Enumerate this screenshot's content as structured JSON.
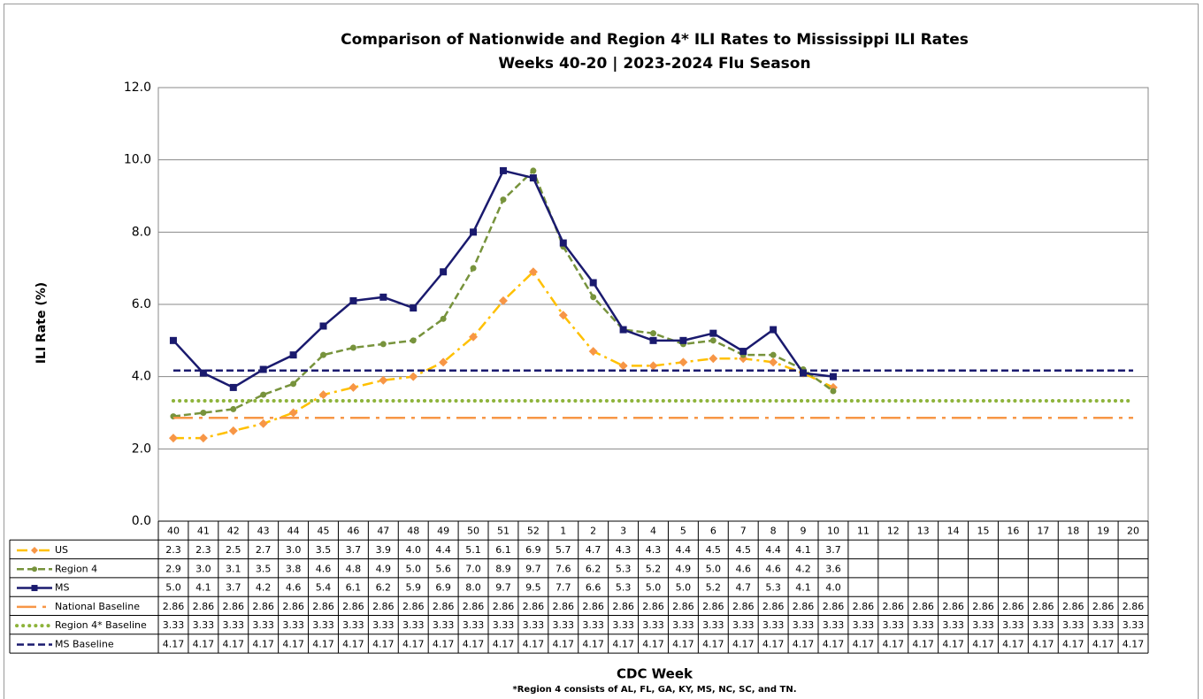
{
  "chart_data": {
    "type": "line",
    "title": "Comparison of Nationwide and Region 4* ILI Rates to Mississippi ILI Rates",
    "subtitle": "Weeks 40-20 | 2023-2024 Flu Season",
    "y_label": "ILI Rate (%)",
    "x_label": "CDC Week",
    "footnote": "*Region 4 consists of AL, FL, GA, KY, MS, NC, SC, and TN.",
    "ylim": [
      0,
      12
    ],
    "yticks": [
      {
        "value": 0,
        "label": "0.0"
      },
      {
        "value": 2,
        "label": "2.0"
      },
      {
        "value": 4,
        "label": "4.0"
      },
      {
        "value": 6,
        "label": "6.0"
      },
      {
        "value": 8,
        "label": "8.0"
      },
      {
        "value": 10,
        "label": "10.0"
      },
      {
        "value": 12,
        "label": "12.0"
      }
    ],
    "grid": true,
    "categories": [
      "40",
      "41",
      "42",
      "43",
      "44",
      "45",
      "46",
      "47",
      "48",
      "49",
      "50",
      "51",
      "52",
      "1",
      "2",
      "3",
      "4",
      "5",
      "6",
      "7",
      "8",
      "9",
      "10",
      "11",
      "12",
      "13",
      "14",
      "15",
      "16",
      "17",
      "18",
      "19",
      "20"
    ],
    "series": [
      {
        "name": "US",
        "color": "#ffc000",
        "marker_color": "#f79646",
        "marker": "diamond",
        "style": "dash-dot",
        "values": [
          2.3,
          2.3,
          2.5,
          2.7,
          3.0,
          3.5,
          3.7,
          3.9,
          4.0,
          4.4,
          5.1,
          6.1,
          6.9,
          5.7,
          4.7,
          4.3,
          4.3,
          4.4,
          4.5,
          4.5,
          4.4,
          4.1,
          3.7,
          null,
          null,
          null,
          null,
          null,
          null,
          null,
          null,
          null,
          null
        ],
        "value_labels": [
          "2.3",
          "2.3",
          "2.5",
          "2.7",
          "3.0",
          "3.5",
          "3.7",
          "3.9",
          "4.0",
          "4.4",
          "5.1",
          "6.1",
          "6.9",
          "5.7",
          "4.7",
          "4.3",
          "4.3",
          "4.4",
          "4.5",
          "4.5",
          "4.4",
          "4.1",
          "3.7",
          null,
          null,
          null,
          null,
          null,
          null,
          null,
          null,
          null,
          null
        ]
      },
      {
        "name": "Region 4",
        "color": "#77933c",
        "marker_color": "#77933c",
        "marker": "circle",
        "style": "dash",
        "values": [
          2.9,
          3.0,
          3.1,
          3.5,
          3.8,
          4.6,
          4.8,
          4.9,
          5.0,
          5.6,
          7.0,
          8.9,
          9.7,
          7.6,
          6.2,
          5.3,
          5.2,
          4.9,
          5.0,
          4.6,
          4.6,
          4.2,
          3.6,
          null,
          null,
          null,
          null,
          null,
          null,
          null,
          null,
          null,
          null
        ],
        "value_labels": [
          "2.9",
          "3.0",
          "3.1",
          "3.5",
          "3.8",
          "4.6",
          "4.8",
          "4.9",
          "5.0",
          "5.6",
          "7.0",
          "8.9",
          "9.7",
          "7.6",
          "6.2",
          "5.3",
          "5.2",
          "4.9",
          "5.0",
          "4.6",
          "4.6",
          "4.2",
          "3.6",
          null,
          null,
          null,
          null,
          null,
          null,
          null,
          null,
          null,
          null
        ]
      },
      {
        "name": "MS",
        "color": "#1a1a6e",
        "marker_color": "#1a1a6e",
        "marker": "square",
        "style": "solid",
        "values": [
          5.0,
          4.1,
          3.7,
          4.2,
          4.6,
          5.4,
          6.1,
          6.2,
          5.9,
          6.9,
          8.0,
          9.7,
          9.5,
          7.7,
          6.6,
          5.3,
          5.0,
          5.0,
          5.2,
          4.7,
          5.3,
          4.1,
          4.0,
          null,
          null,
          null,
          null,
          null,
          null,
          null,
          null,
          null,
          null
        ],
        "value_labels": [
          "5.0",
          "4.1",
          "3.7",
          "4.2",
          "4.6",
          "5.4",
          "6.1",
          "6.2",
          "5.9",
          "6.9",
          "8.0",
          "9.7",
          "9.5",
          "7.7",
          "6.6",
          "5.3",
          "5.0",
          "5.0",
          "5.2",
          "4.7",
          "5.3",
          "4.1",
          "4.0",
          null,
          null,
          null,
          null,
          null,
          null,
          null,
          null,
          null,
          null
        ]
      },
      {
        "name": "National Baseline",
        "color": "#f79646",
        "style": "long-dash-dot",
        "values": [
          2.86,
          2.86,
          2.86,
          2.86,
          2.86,
          2.86,
          2.86,
          2.86,
          2.86,
          2.86,
          2.86,
          2.86,
          2.86,
          2.86,
          2.86,
          2.86,
          2.86,
          2.86,
          2.86,
          2.86,
          2.86,
          2.86,
          2.86,
          2.86,
          2.86,
          2.86,
          2.86,
          2.86,
          2.86,
          2.86,
          2.86,
          2.86,
          2.86
        ]
      },
      {
        "name": "Region 4* Baseline",
        "color": "#8db33a",
        "style": "dot",
        "values": [
          3.33,
          3.33,
          3.33,
          3.33,
          3.33,
          3.33,
          3.33,
          3.33,
          3.33,
          3.33,
          3.33,
          3.33,
          3.33,
          3.33,
          3.33,
          3.33,
          3.33,
          3.33,
          3.33,
          3.33,
          3.33,
          3.33,
          3.33,
          3.33,
          3.33,
          3.33,
          3.33,
          3.33,
          3.33,
          3.33,
          3.33,
          3.33,
          3.33
        ]
      },
      {
        "name": "MS Baseline",
        "color": "#1a1a6e",
        "style": "dash",
        "values": [
          4.17,
          4.17,
          4.17,
          4.17,
          4.17,
          4.17,
          4.17,
          4.17,
          4.17,
          4.17,
          4.17,
          4.17,
          4.17,
          4.17,
          4.17,
          4.17,
          4.17,
          4.17,
          4.17,
          4.17,
          4.17,
          4.17,
          4.17,
          4.17,
          4.17,
          4.17,
          4.17,
          4.17,
          4.17,
          4.17,
          4.17,
          4.17,
          4.17
        ]
      }
    ]
  }
}
